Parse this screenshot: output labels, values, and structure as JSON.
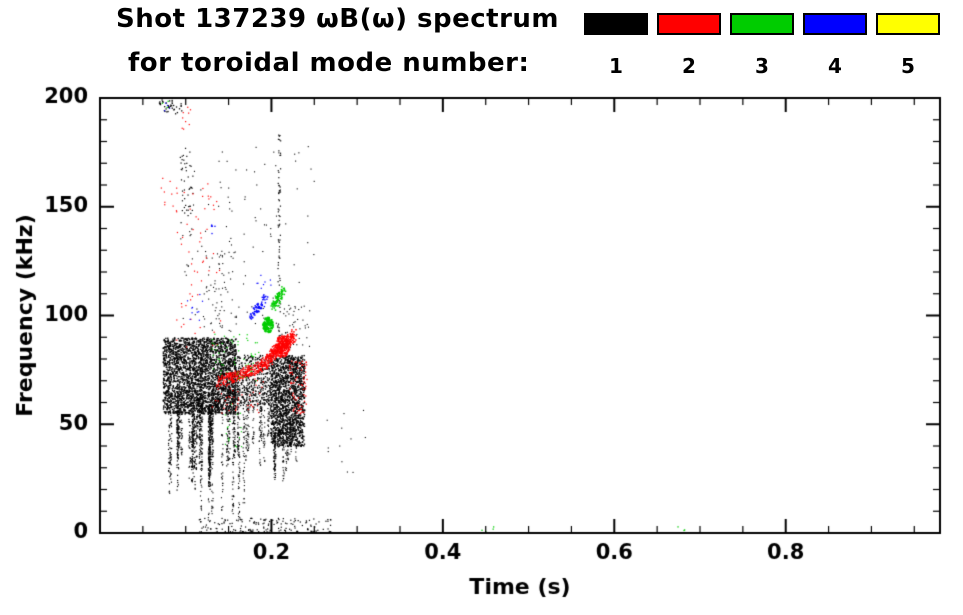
{
  "header": {
    "title_line1": "Shot 137239 ωB(ω) spectrum",
    "title_line2": "for toroidal mode number:"
  },
  "chart_data": {
    "type": "scatter",
    "title": "Shot 137239 ωB(ω) spectrum for toroidal mode number: 1 2 3 4 5",
    "xlabel": "Time (s)",
    "ylabel": "Frequency (kHz)",
    "xlim": [
      0,
      0.98
    ],
    "ylim": [
      0,
      200
    ],
    "x_major_ticks": [
      0.2,
      0.4,
      0.6,
      0.8
    ],
    "x_tick_labels": [
      "0.2",
      "0.4",
      "0.6",
      "0.8"
    ],
    "x_minor_step": 0.05,
    "y_major_ticks": [
      0,
      50,
      100,
      150,
      200
    ],
    "y_tick_labels": [
      "0",
      "50",
      "100",
      "150",
      "200"
    ],
    "y_minor_step": 10,
    "grid": false,
    "legend_position": "top-right",
    "legend": [
      {
        "label": "1",
        "color": "#000000"
      },
      {
        "label": "2",
        "color": "#ff0000"
      },
      {
        "label": "3",
        "color": "#00cc00"
      },
      {
        "label": "4",
        "color": "#0000ff"
      },
      {
        "label": "5",
        "color": "#ffff00"
      }
    ],
    "series": [
      {
        "name": "toroidal-mode-1",
        "color": "#000000",
        "clusters": [
          {
            "type": "box",
            "t": [
              0.073,
              0.158
            ],
            "f": [
              55,
              90
            ],
            "n": 2600,
            "size": 1.4
          },
          {
            "type": "vstreaks",
            "t": [
              0.078,
              0.158
            ],
            "ftop": [
              55,
              75
            ],
            "fbot": [
              18,
              45
            ],
            "count": 28,
            "per": 40,
            "size": 1.2
          },
          {
            "type": "vstreaks",
            "t": [
              0.115,
              0.175
            ],
            "ftop": [
              70,
              80
            ],
            "fbot": [
              2,
              12
            ],
            "count": 7,
            "per": 55,
            "size": 1.1
          },
          {
            "type": "box",
            "t": [
              0.155,
              0.2
            ],
            "f": [
              58,
              82
            ],
            "n": 420,
            "size": 1.3
          },
          {
            "type": "vstreaks",
            "t": [
              0.16,
              0.2
            ],
            "ftop": [
              58,
              70
            ],
            "fbot": [
              25,
              45
            ],
            "count": 10,
            "per": 30,
            "size": 1.1
          },
          {
            "type": "box",
            "t": [
              0.199,
              0.238
            ],
            "f": [
              40,
              82
            ],
            "n": 1500,
            "size": 1.4
          },
          {
            "type": "vstreaks",
            "t": [
              0.2,
              0.235
            ],
            "ftop": [
              45,
              60
            ],
            "fbot": [
              20,
              38
            ],
            "count": 8,
            "per": 30,
            "size": 1.1
          },
          {
            "type": "box",
            "t": [
              0.09,
              0.25
            ],
            "f": [
              95,
              178
            ],
            "n": 110,
            "size": 1.1
          },
          {
            "type": "box",
            "t": [
              0.093,
              0.108
            ],
            "f": [
              140,
              178
            ],
            "n": 45,
            "size": 1.2
          },
          {
            "type": "box",
            "t": [
              0.12,
              0.16
            ],
            "f": [
              90,
              130
            ],
            "n": 60,
            "size": 1.1
          },
          {
            "type": "line",
            "from": [
              0.208,
              90
            ],
            "to": [
              0.209,
              186
            ],
            "n": 70,
            "jitter": [
              0.0015,
              2
            ],
            "size": 1.2
          },
          {
            "type": "box",
            "t": [
              0.115,
              0.27
            ],
            "f": [
              0.5,
              7
            ],
            "n": 160,
            "size": 1.2
          },
          {
            "type": "box",
            "t": [
              0.068,
              0.095
            ],
            "f": [
              193,
              200
            ],
            "n": 40,
            "size": 1.3
          },
          {
            "type": "box",
            "t": [
              0.21,
              0.245
            ],
            "f": [
              85,
              105
            ],
            "n": 40,
            "size": 1.1
          },
          {
            "type": "box",
            "t": [
              0.26,
              0.31
            ],
            "f": [
              25,
              58
            ],
            "n": 12,
            "size": 1.1
          }
        ]
      },
      {
        "name": "toroidal-mode-2",
        "color": "#ff0000",
        "clusters": [
          {
            "type": "line",
            "from": [
              0.138,
              70
            ],
            "to": [
              0.19,
              77
            ],
            "n": 260,
            "jitter": [
              0.004,
              2.5
            ],
            "size": 1.4
          },
          {
            "type": "line",
            "from": [
              0.19,
              78
            ],
            "to": [
              0.225,
              91
            ],
            "n": 320,
            "jitter": [
              0.004,
              3
            ],
            "size": 1.5
          },
          {
            "type": "blob",
            "c": [
              0.212,
              86
            ],
            "r": [
              0.009,
              5
            ],
            "n": 200,
            "size": 1.5
          },
          {
            "type": "box",
            "t": [
              0.088,
              0.14
            ],
            "f": [
              85,
              162
            ],
            "n": 60,
            "size": 1.2
          },
          {
            "type": "box",
            "t": [
              0.095,
              0.105
            ],
            "f": [
              185,
              200
            ],
            "n": 10,
            "size": 1.2
          },
          {
            "type": "box",
            "t": [
              0.22,
              0.242
            ],
            "f": [
              55,
              80
            ],
            "n": 70,
            "size": 1.3
          },
          {
            "type": "box",
            "t": [
              0.13,
              0.19
            ],
            "f": [
              55,
              72
            ],
            "n": 50,
            "size": 1.2
          },
          {
            "type": "box",
            "t": [
              0.07,
              0.085
            ],
            "f": [
              150,
              165
            ],
            "n": 8,
            "size": 1.2
          }
        ]
      },
      {
        "name": "toroidal-mode-3",
        "color": "#00cc00",
        "clusters": [
          {
            "type": "blob",
            "c": [
              0.195,
              96
            ],
            "r": [
              0.006,
              3.5
            ],
            "n": 130,
            "size": 1.7
          },
          {
            "type": "line",
            "from": [
              0.2,
              104
            ],
            "to": [
              0.214,
              112
            ],
            "n": 90,
            "jitter": [
              0.003,
              2
            ],
            "size": 1.5
          },
          {
            "type": "box",
            "t": [
              0.13,
              0.185
            ],
            "f": [
              70,
              92
            ],
            "n": 60,
            "size": 1.2
          },
          {
            "type": "box",
            "t": [
              0.145,
              0.165
            ],
            "f": [
              38,
              60
            ],
            "n": 18,
            "size": 1.1
          },
          {
            "type": "box",
            "t": [
              0.44,
              0.46
            ],
            "f": [
              0.5,
              4
            ],
            "n": 4,
            "size": 1.3
          },
          {
            "type": "box",
            "t": [
              0.67,
              0.69
            ],
            "f": [
              0.5,
              4
            ],
            "n": 3,
            "size": 1.3
          },
          {
            "type": "box",
            "t": [
              0.071,
              0.08
            ],
            "f": [
              195,
              200
            ],
            "n": 5,
            "size": 1.3
          }
        ]
      },
      {
        "name": "toroidal-mode-4",
        "color": "#0000ff",
        "clusters": [
          {
            "type": "line",
            "from": [
              0.174,
              100
            ],
            "to": [
              0.193,
              108
            ],
            "n": 70,
            "jitter": [
              0.003,
              2
            ],
            "size": 1.4
          },
          {
            "type": "box",
            "t": [
              0.126,
              0.136
            ],
            "f": [
              136,
              146
            ],
            "n": 6,
            "size": 1.3
          },
          {
            "type": "box",
            "t": [
              0.18,
              0.2
            ],
            "f": [
              112,
              120
            ],
            "n": 8,
            "size": 1.2
          },
          {
            "type": "box",
            "t": [
              0.072,
              0.082
            ],
            "f": [
              193,
              200
            ],
            "n": 4,
            "size": 1.2
          },
          {
            "type": "box",
            "t": [
              0.1,
              0.12
            ],
            "f": [
              95,
              110
            ],
            "n": 10,
            "size": 1.2
          }
        ]
      },
      {
        "name": "toroidal-mode-5",
        "color": "#ffff00",
        "clusters": []
      }
    ]
  }
}
